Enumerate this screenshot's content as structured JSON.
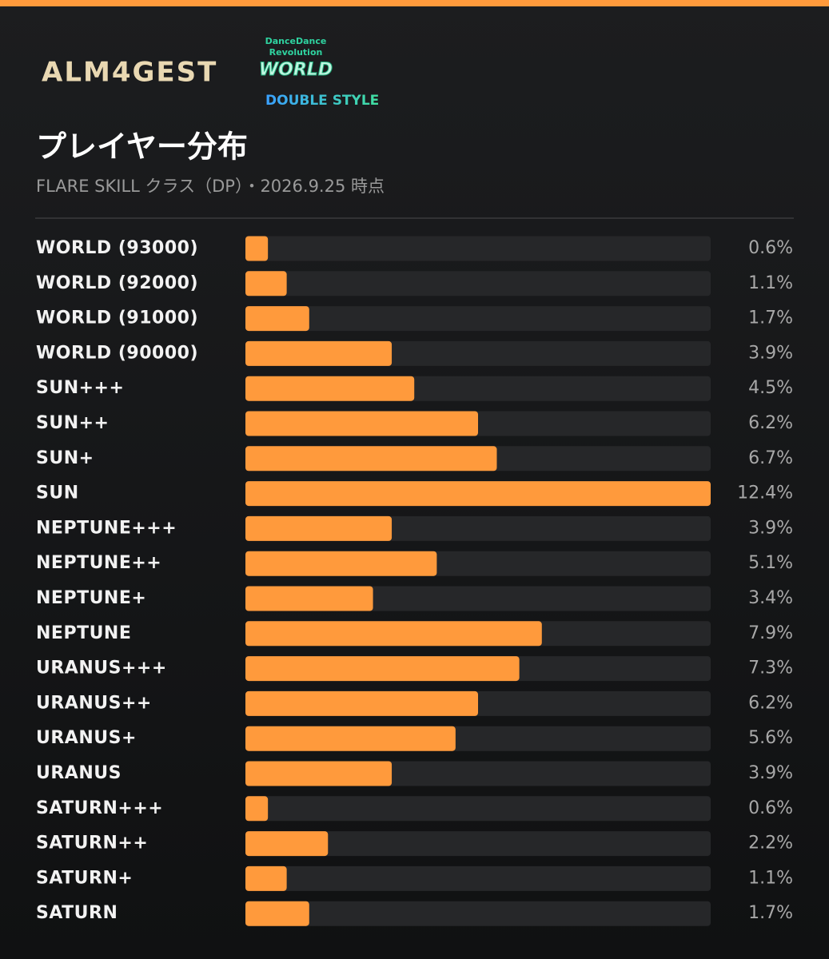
{
  "header": {
    "logo": "ALM4GEST",
    "game_logo_top": "DanceDance",
    "game_logo_mid": "Revolution",
    "game_logo_bottom": "WORLD",
    "badge": "DOUBLE STYLE"
  },
  "chart_data": {
    "type": "hbar",
    "title": "プレイヤー分布",
    "subtitle": "FLARE SKILL クラス（DP）・2026.9.25 時点",
    "categories": [
      "WORLD (93000)",
      "WORLD (92000)",
      "WORLD (91000)",
      "WORLD (90000)",
      "SUN+++",
      "SUN++",
      "SUN+",
      "SUN",
      "NEPTUNE+++",
      "NEPTUNE++",
      "NEPTUNE+",
      "NEPTUNE",
      "URANUS+++",
      "URANUS++",
      "URANUS+",
      "URANUS",
      "SATURN+++",
      "SATURN++",
      "SATURN+",
      "SATURN"
    ],
    "values": [
      0.6,
      1.1,
      1.7,
      3.9,
      4.5,
      6.2,
      6.7,
      12.4,
      3.9,
      5.1,
      3.4,
      7.9,
      7.3,
      6.2,
      5.6,
      3.9,
      0.6,
      2.2,
      1.1,
      1.7
    ],
    "value_labels": [
      "0.6%",
      "1.1%",
      "1.7%",
      "3.9%",
      "4.5%",
      "6.2%",
      "6.7%",
      "12.4%",
      "3.9%",
      "5.1%",
      "3.4%",
      "7.9%",
      "7.3%",
      "6.2%",
      "5.6%",
      "3.9%",
      "0.6%",
      "2.2%",
      "1.1%",
      "1.7%"
    ],
    "color": "#ff9a3c",
    "track_color": "#262729"
  }
}
